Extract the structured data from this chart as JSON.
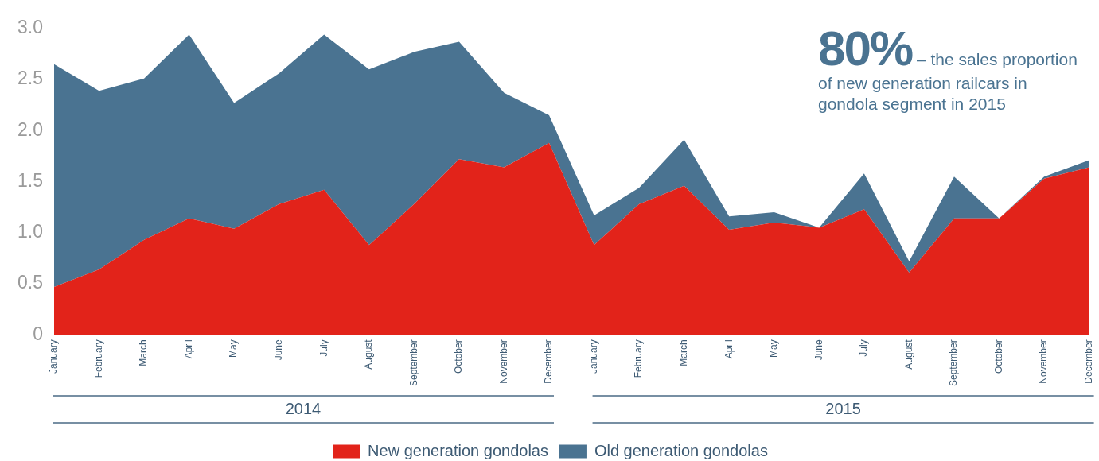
{
  "chart_data": {
    "type": "area",
    "stacked": true,
    "categories": [
      "January",
      "February",
      "March",
      "April",
      "May",
      "June",
      "July",
      "August",
      "September",
      "October",
      "November",
      "December",
      "January",
      "February",
      "March",
      "April",
      "May",
      "June",
      "July",
      "August",
      "September",
      "October",
      "November",
      "December"
    ],
    "series": [
      {
        "name": "New generation gondolas",
        "color": "#e2231a",
        "values": [
          0.47,
          0.64,
          0.93,
          1.14,
          1.04,
          1.28,
          1.42,
          0.88,
          1.28,
          1.72,
          1.64,
          1.88,
          0.88,
          1.28,
          1.46,
          1.03,
          1.1,
          1.05,
          1.23,
          0.61,
          1.14,
          1.14,
          1.53,
          1.64
        ]
      },
      {
        "name": "Old generation gondolas",
        "color": "#4a7391",
        "values": [
          2.18,
          1.75,
          1.58,
          1.8,
          1.23,
          1.28,
          1.52,
          1.72,
          1.49,
          1.15,
          0.73,
          0.27,
          0.29,
          0.16,
          0.45,
          0.13,
          0.1,
          0,
          0.35,
          0.11,
          0.41,
          0,
          0.02,
          0.07
        ]
      }
    ],
    "ylim": [
      0,
      3
    ],
    "yticks": [
      0,
      0.5,
      {
        "value": 1,
        "label": "1.0"
      },
      1.5,
      {
        "value": 2,
        "label": "2.0"
      },
      2.5,
      {
        "value": 3,
        "label": "3.0"
      }
    ],
    "grid": false,
    "legend": "bottom",
    "annotations": [
      "2014",
      "2015",
      "80%",
      "– the sales proportion of new generation railcars in gondola segment in 2015"
    ]
  }
}
